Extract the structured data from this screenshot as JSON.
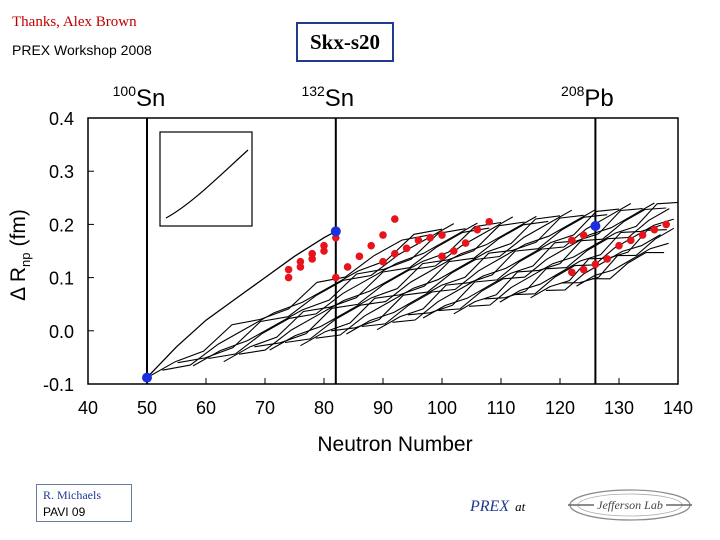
{
  "header": {
    "credit_line1": "Thanks,  Alex Brown",
    "credit_line2": "PREX  Workshop 2008",
    "model_label": "Skx-s20"
  },
  "footer": {
    "author": "R. Michaels",
    "conference": "PAVI  09",
    "prex": "PREX",
    "at": "at",
    "logo_text": "Jefferson Lab"
  },
  "colors": {
    "red_points": "#e8141c",
    "blue_points": "#1a2fe0"
  },
  "chart_data": {
    "type": "line",
    "xlabel": "Neutron Number",
    "ylabel_delta": "Δ R",
    "ylabel_sub": "np",
    "ylabel_unit": "(fm)",
    "xlim": [
      40,
      140
    ],
    "ylim": [
      -0.1,
      0.4
    ],
    "xticks": [
      "40",
      "50",
      "60",
      "70",
      "80",
      "90",
      "100",
      "110",
      "120",
      "130",
      "140"
    ],
    "yticks": [
      "-0.1",
      "0.0",
      "0.1",
      "0.2",
      "0.3",
      "0.4"
    ],
    "markers": [
      {
        "label": "Sn",
        "mass": "100",
        "x": 50
      },
      {
        "label": "Sn",
        "mass": "132",
        "x": 82
      },
      {
        "label": "Pb",
        "mass": "208",
        "x": 126
      }
    ],
    "band_note": "Family of ~30 isotope chains, each rising from lower-left to upper-right with kinks",
    "blue_points": [
      {
        "x": 50,
        "y": -0.088
      },
      {
        "x": 82,
        "y": 0.187
      },
      {
        "x": 126,
        "y": 0.197
      }
    ],
    "red_points": [
      {
        "x": 74,
        "y": 0.1
      },
      {
        "x": 74,
        "y": 0.115
      },
      {
        "x": 76,
        "y": 0.13
      },
      {
        "x": 76,
        "y": 0.12
      },
      {
        "x": 78,
        "y": 0.135
      },
      {
        "x": 78,
        "y": 0.145
      },
      {
        "x": 80,
        "y": 0.15
      },
      {
        "x": 80,
        "y": 0.16
      },
      {
        "x": 82,
        "y": 0.175
      },
      {
        "x": 82,
        "y": 0.185
      },
      {
        "x": 82,
        "y": 0.1
      },
      {
        "x": 84,
        "y": 0.12
      },
      {
        "x": 86,
        "y": 0.14
      },
      {
        "x": 88,
        "y": 0.16
      },
      {
        "x": 90,
        "y": 0.18
      },
      {
        "x": 92,
        "y": 0.21
      },
      {
        "x": 90,
        "y": 0.13
      },
      {
        "x": 92,
        "y": 0.145
      },
      {
        "x": 94,
        "y": 0.155
      },
      {
        "x": 96,
        "y": 0.17
      },
      {
        "x": 98,
        "y": 0.175
      },
      {
        "x": 100,
        "y": 0.18
      },
      {
        "x": 100,
        "y": 0.14
      },
      {
        "x": 102,
        "y": 0.15
      },
      {
        "x": 104,
        "y": 0.165
      },
      {
        "x": 106,
        "y": 0.19
      },
      {
        "x": 108,
        "y": 0.205
      },
      {
        "x": 122,
        "y": 0.17
      },
      {
        "x": 124,
        "y": 0.18
      },
      {
        "x": 122,
        "y": 0.11
      },
      {
        "x": 124,
        "y": 0.115
      },
      {
        "x": 126,
        "y": 0.125
      },
      {
        "x": 128,
        "y": 0.135
      },
      {
        "x": 130,
        "y": 0.16
      },
      {
        "x": 132,
        "y": 0.17
      },
      {
        "x": 134,
        "y": 0.18
      },
      {
        "x": 136,
        "y": 0.19
      },
      {
        "x": 138,
        "y": 0.2
      }
    ]
  }
}
